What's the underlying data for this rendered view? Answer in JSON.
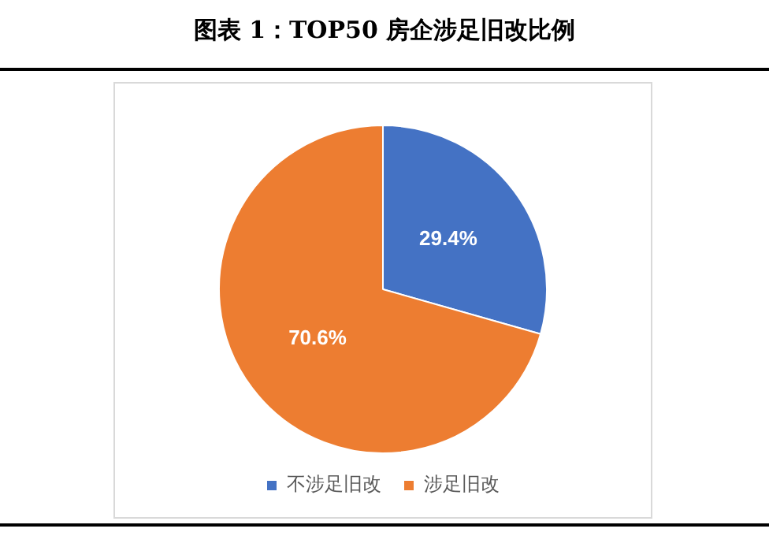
{
  "chart_data": {
    "type": "pie",
    "title": "图表 1：TOP50 房企涉足旧改比例",
    "categories": [
      "不涉足旧改",
      "涉足旧改"
    ],
    "values": [
      29.4,
      70.6
    ],
    "colors": [
      "#4472c4",
      "#ed7d31"
    ],
    "value_labels": [
      "29.4%",
      "70.6%"
    ],
    "legend": "bottom"
  }
}
